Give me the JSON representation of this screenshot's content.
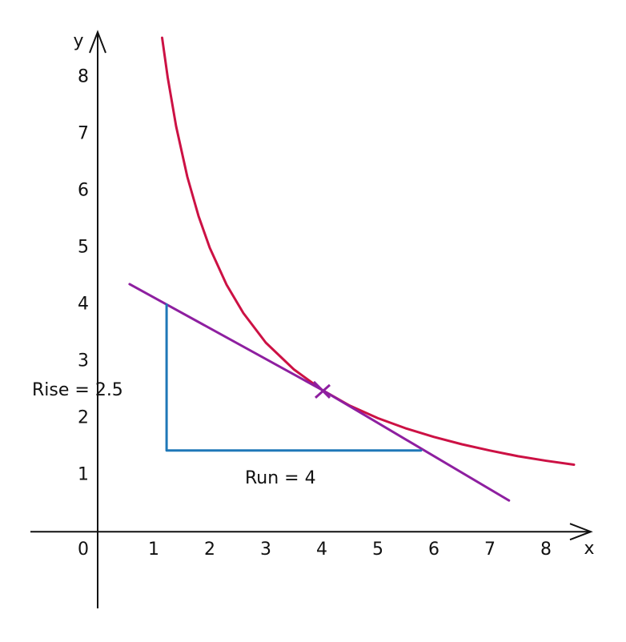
{
  "chart_data": {
    "type": "line",
    "xlabel": "x",
    "ylabel": "y",
    "xlim": [
      -1.2,
      8.8
    ],
    "ylim": [
      -1.35,
      8.8
    ],
    "xticks": [
      0,
      1,
      2,
      3,
      4,
      5,
      6,
      7,
      8
    ],
    "yticks": [
      1,
      2,
      3,
      4,
      5,
      6,
      7,
      8
    ],
    "grid": false,
    "series": [
      {
        "color": "#cc1144",
        "x": [
          1.15,
          1.25,
          1.4,
          1.6,
          1.8,
          2,
          2.3,
          2.6,
          3,
          3.5,
          4,
          4.5,
          5,
          5.5,
          6,
          6.5,
          7,
          7.5,
          8,
          8.5
        ],
        "values": [
          8.7,
          8,
          7.14,
          6.25,
          5.56,
          5,
          4.35,
          3.85,
          3.33,
          2.86,
          2.5,
          2.22,
          2,
          1.82,
          1.67,
          1.54,
          1.43,
          1.33,
          1.25,
          1.18
        ]
      },
      {
        "color": "#8e1fa0",
        "x": [
          0.57,
          4,
          7.34
        ],
        "values": [
          4.36,
          2.5,
          0.55
        ]
      },
      {
        "color": "#1f78b8",
        "x": [
          1.23,
          1.23,
          5.77
        ],
        "values": [
          4,
          1.43,
          1.43
        ]
      }
    ],
    "point": {
      "x": 4,
      "y": 2.5,
      "color": "#8e1fa0"
    },
    "annotations": [
      "Rise = 2.5",
      "Run = 4"
    ],
    "annotation_color": "#cc1144"
  }
}
